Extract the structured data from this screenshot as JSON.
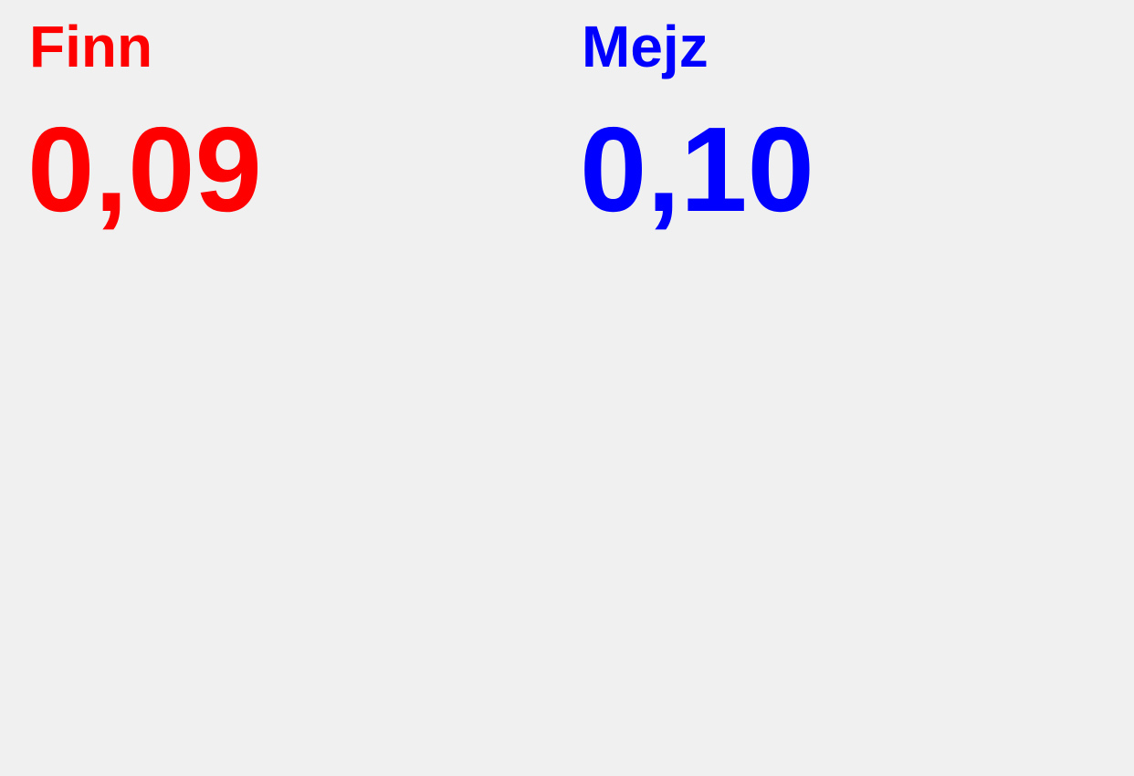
{
  "players": [
    {
      "name": "Finn",
      "value": "0,09",
      "color": "#ff0000"
    },
    {
      "name": "Mejz",
      "value": "0,10",
      "color": "#0000ff"
    }
  ]
}
